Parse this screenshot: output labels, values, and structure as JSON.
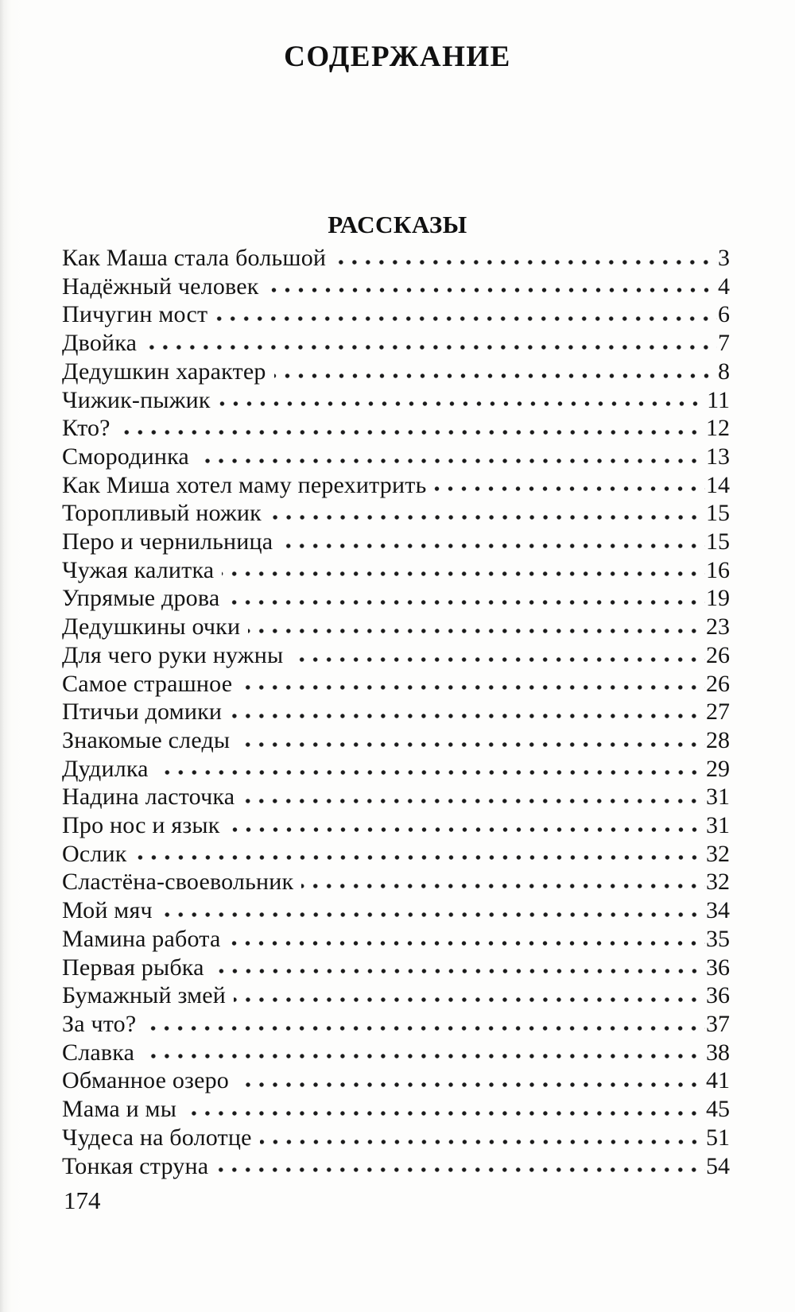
{
  "title": "СОДЕРЖАНИЕ",
  "section": {
    "heading": "РАССКАЗЫ",
    "entries": [
      {
        "title": "Как Маша стала большой",
        "page": "3"
      },
      {
        "title": "Надёжный человек",
        "page": "4"
      },
      {
        "title": "Пичугин мост",
        "page": "6"
      },
      {
        "title": "Двойка",
        "page": "7"
      },
      {
        "title": "Дедушкин характер",
        "page": "8"
      },
      {
        "title": "Чижик-пыжик",
        "page": "11"
      },
      {
        "title": "Кто?",
        "page": "12"
      },
      {
        "title": "Смородинка",
        "page": "13"
      },
      {
        "title": "Как Миша хотел маму перехитрить",
        "page": "14"
      },
      {
        "title": "Торопливый ножик",
        "page": "15"
      },
      {
        "title": "Перо и чернильница",
        "page": "15"
      },
      {
        "title": "Чужая калитка",
        "page": "16"
      },
      {
        "title": "Упрямые дрова",
        "page": "19"
      },
      {
        "title": "Дедушкины очки",
        "page": "23"
      },
      {
        "title": "Для чего руки нужны",
        "page": "26"
      },
      {
        "title": "Самое страшное",
        "page": "26"
      },
      {
        "title": "Птичьи домики",
        "page": "27"
      },
      {
        "title": "Знакомые следы",
        "page": "28"
      },
      {
        "title": "Дудилка",
        "page": "29"
      },
      {
        "title": "Надина ласточка",
        "page": "31"
      },
      {
        "title": "Про нос и язык",
        "page": "31"
      },
      {
        "title": "Ослик",
        "page": "32"
      },
      {
        "title": "Сластёна-своевольник",
        "page": "32"
      },
      {
        "title": "Мой мяч",
        "page": "34"
      },
      {
        "title": "Мамина работа",
        "page": "35"
      },
      {
        "title": "Первая рыбка",
        "page": "36"
      },
      {
        "title": "Бумажный змей",
        "page": "36"
      },
      {
        "title": "За что?",
        "page": "37"
      },
      {
        "title": "Славка",
        "page": "38"
      },
      {
        "title": "Обманное озеро",
        "page": "41"
      },
      {
        "title": "Мама и мы",
        "page": "45"
      },
      {
        "title": "Чудеса на болотце",
        "page": "51"
      },
      {
        "title": "Тонкая струна",
        "page": "54"
      }
    ]
  },
  "footer": {
    "page_number": "174"
  }
}
